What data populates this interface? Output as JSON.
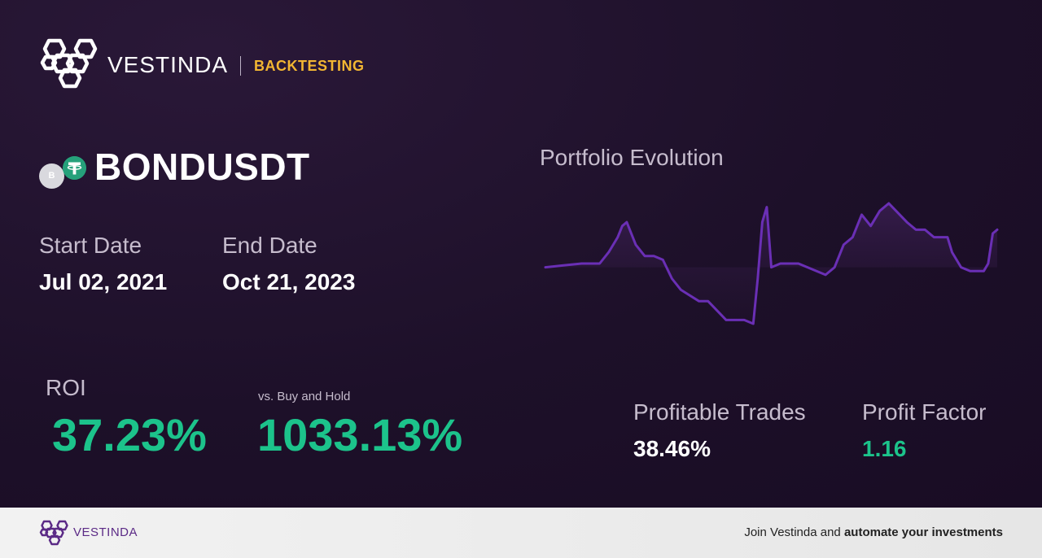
{
  "header": {
    "brand": "VESTINDA",
    "product": "BACKTESTING",
    "logo_icon": "vestinda-hexagon-logo-icon"
  },
  "asset": {
    "symbol": "BONDUSDT",
    "base_coin_letter": "B",
    "quote_coin_icon": "tether-icon"
  },
  "dates": {
    "start_label": "Start Date",
    "start_value": "Jul 02, 2021",
    "end_label": "End Date",
    "end_value": "Oct 21, 2023"
  },
  "metrics": {
    "roi_label": "ROI",
    "roi_value": "37.23%",
    "vs_label": "vs. Buy and Hold",
    "vs_value": "1033.13%",
    "profitable_label": "Profitable Trades",
    "profitable_value": "38.46%",
    "profit_factor_label": "Profit Factor",
    "profit_factor_value": "1.16"
  },
  "chart_data": {
    "type": "line",
    "title": "Portfolio Evolution",
    "xlabel": "",
    "ylabel": "",
    "grid": false,
    "x": [
      0,
      4,
      8,
      12,
      14,
      16,
      17,
      18,
      20,
      22,
      24,
      26,
      28,
      30,
      34,
      36,
      40,
      44,
      46,
      47,
      48,
      49,
      50,
      52,
      56,
      60,
      62,
      64,
      66,
      68,
      70,
      72,
      74,
      76,
      80,
      82,
      84,
      86,
      88,
      89,
      90,
      92,
      94,
      96,
      97,
      98,
      99,
      100
    ],
    "values": [
      0,
      0.5,
      1,
      1,
      4,
      8,
      11,
      12,
      6,
      3,
      3,
      2,
      -3,
      -6,
      -9,
      -9,
      -14,
      -14,
      -15,
      -3,
      12,
      16,
      0,
      1,
      1,
      -1,
      -2,
      0,
      6,
      8,
      14,
      11,
      15,
      17,
      12,
      10,
      10,
      8,
      8,
      8,
      4,
      0,
      -1,
      -1,
      -1,
      1,
      9,
      10
    ],
    "baseline": 0,
    "colors": {
      "line": "#6a2fb5",
      "fill": "#3a2050"
    }
  },
  "footer": {
    "brand": "VESTINDA",
    "cta_prefix": "Join Vestinda and ",
    "cta_bold": "automate your investments"
  },
  "colors": {
    "accent_gold": "#f2b632",
    "positive_green": "#1cc38b",
    "brand_purple": "#5b2a86"
  }
}
